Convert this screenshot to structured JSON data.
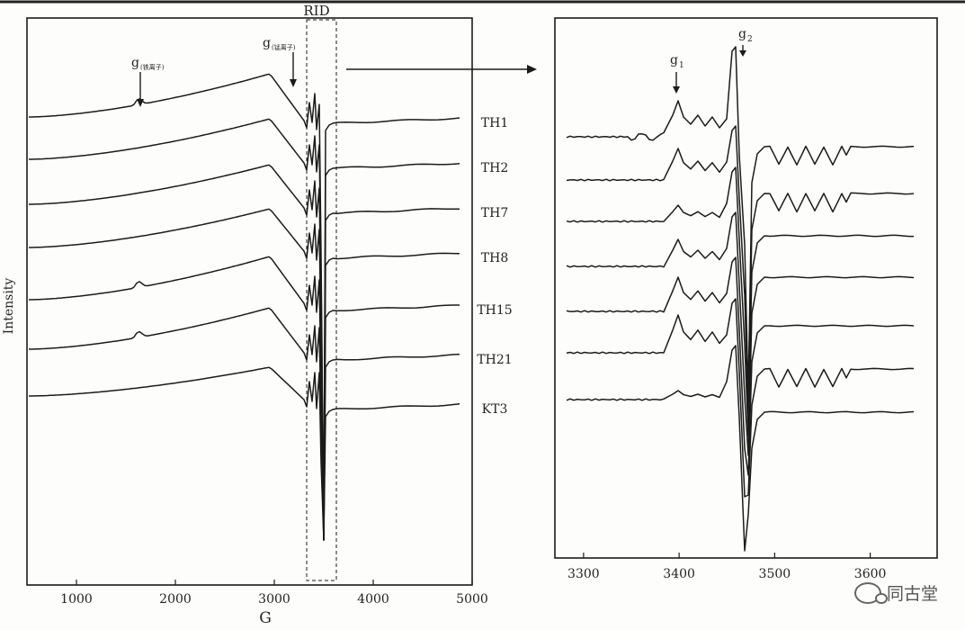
{
  "chart_data": [
    {
      "type": "line",
      "panel": "left",
      "xlabel": "G",
      "ylabel": "Intensity",
      "xlim": [
        500,
        5000
      ],
      "x_ticks": [
        "1000",
        "2000",
        "3000",
        "4000",
        "5000"
      ],
      "region_label": "RID",
      "annotations": [
        {
          "text": "g",
          "sub": "(铁离子)",
          "x": 1650
        },
        {
          "text": "g",
          "sub": "(锰离子)",
          "x": 3200
        }
      ],
      "series": [
        {
          "name": "TH1"
        },
        {
          "name": "TH2"
        },
        {
          "name": "TH7"
        },
        {
          "name": "TH8"
        },
        {
          "name": "TH15"
        },
        {
          "name": "TH21"
        },
        {
          "name": "KT3"
        }
      ]
    },
    {
      "type": "line",
      "panel": "right",
      "xlim": [
        3270,
        3670
      ],
      "x_ticks": [
        "3300",
        "3400",
        "3500",
        "3600"
      ],
      "annotations": [
        {
          "text": "g",
          "sub": "1",
          "x": 3395
        },
        {
          "text": "g",
          "sub": "2",
          "x": 3468
        }
      ]
    }
  ],
  "watermark": {
    "text": "同古堂",
    "icon": "wechat-icon"
  },
  "connector_icon": "arrow-right-icon"
}
